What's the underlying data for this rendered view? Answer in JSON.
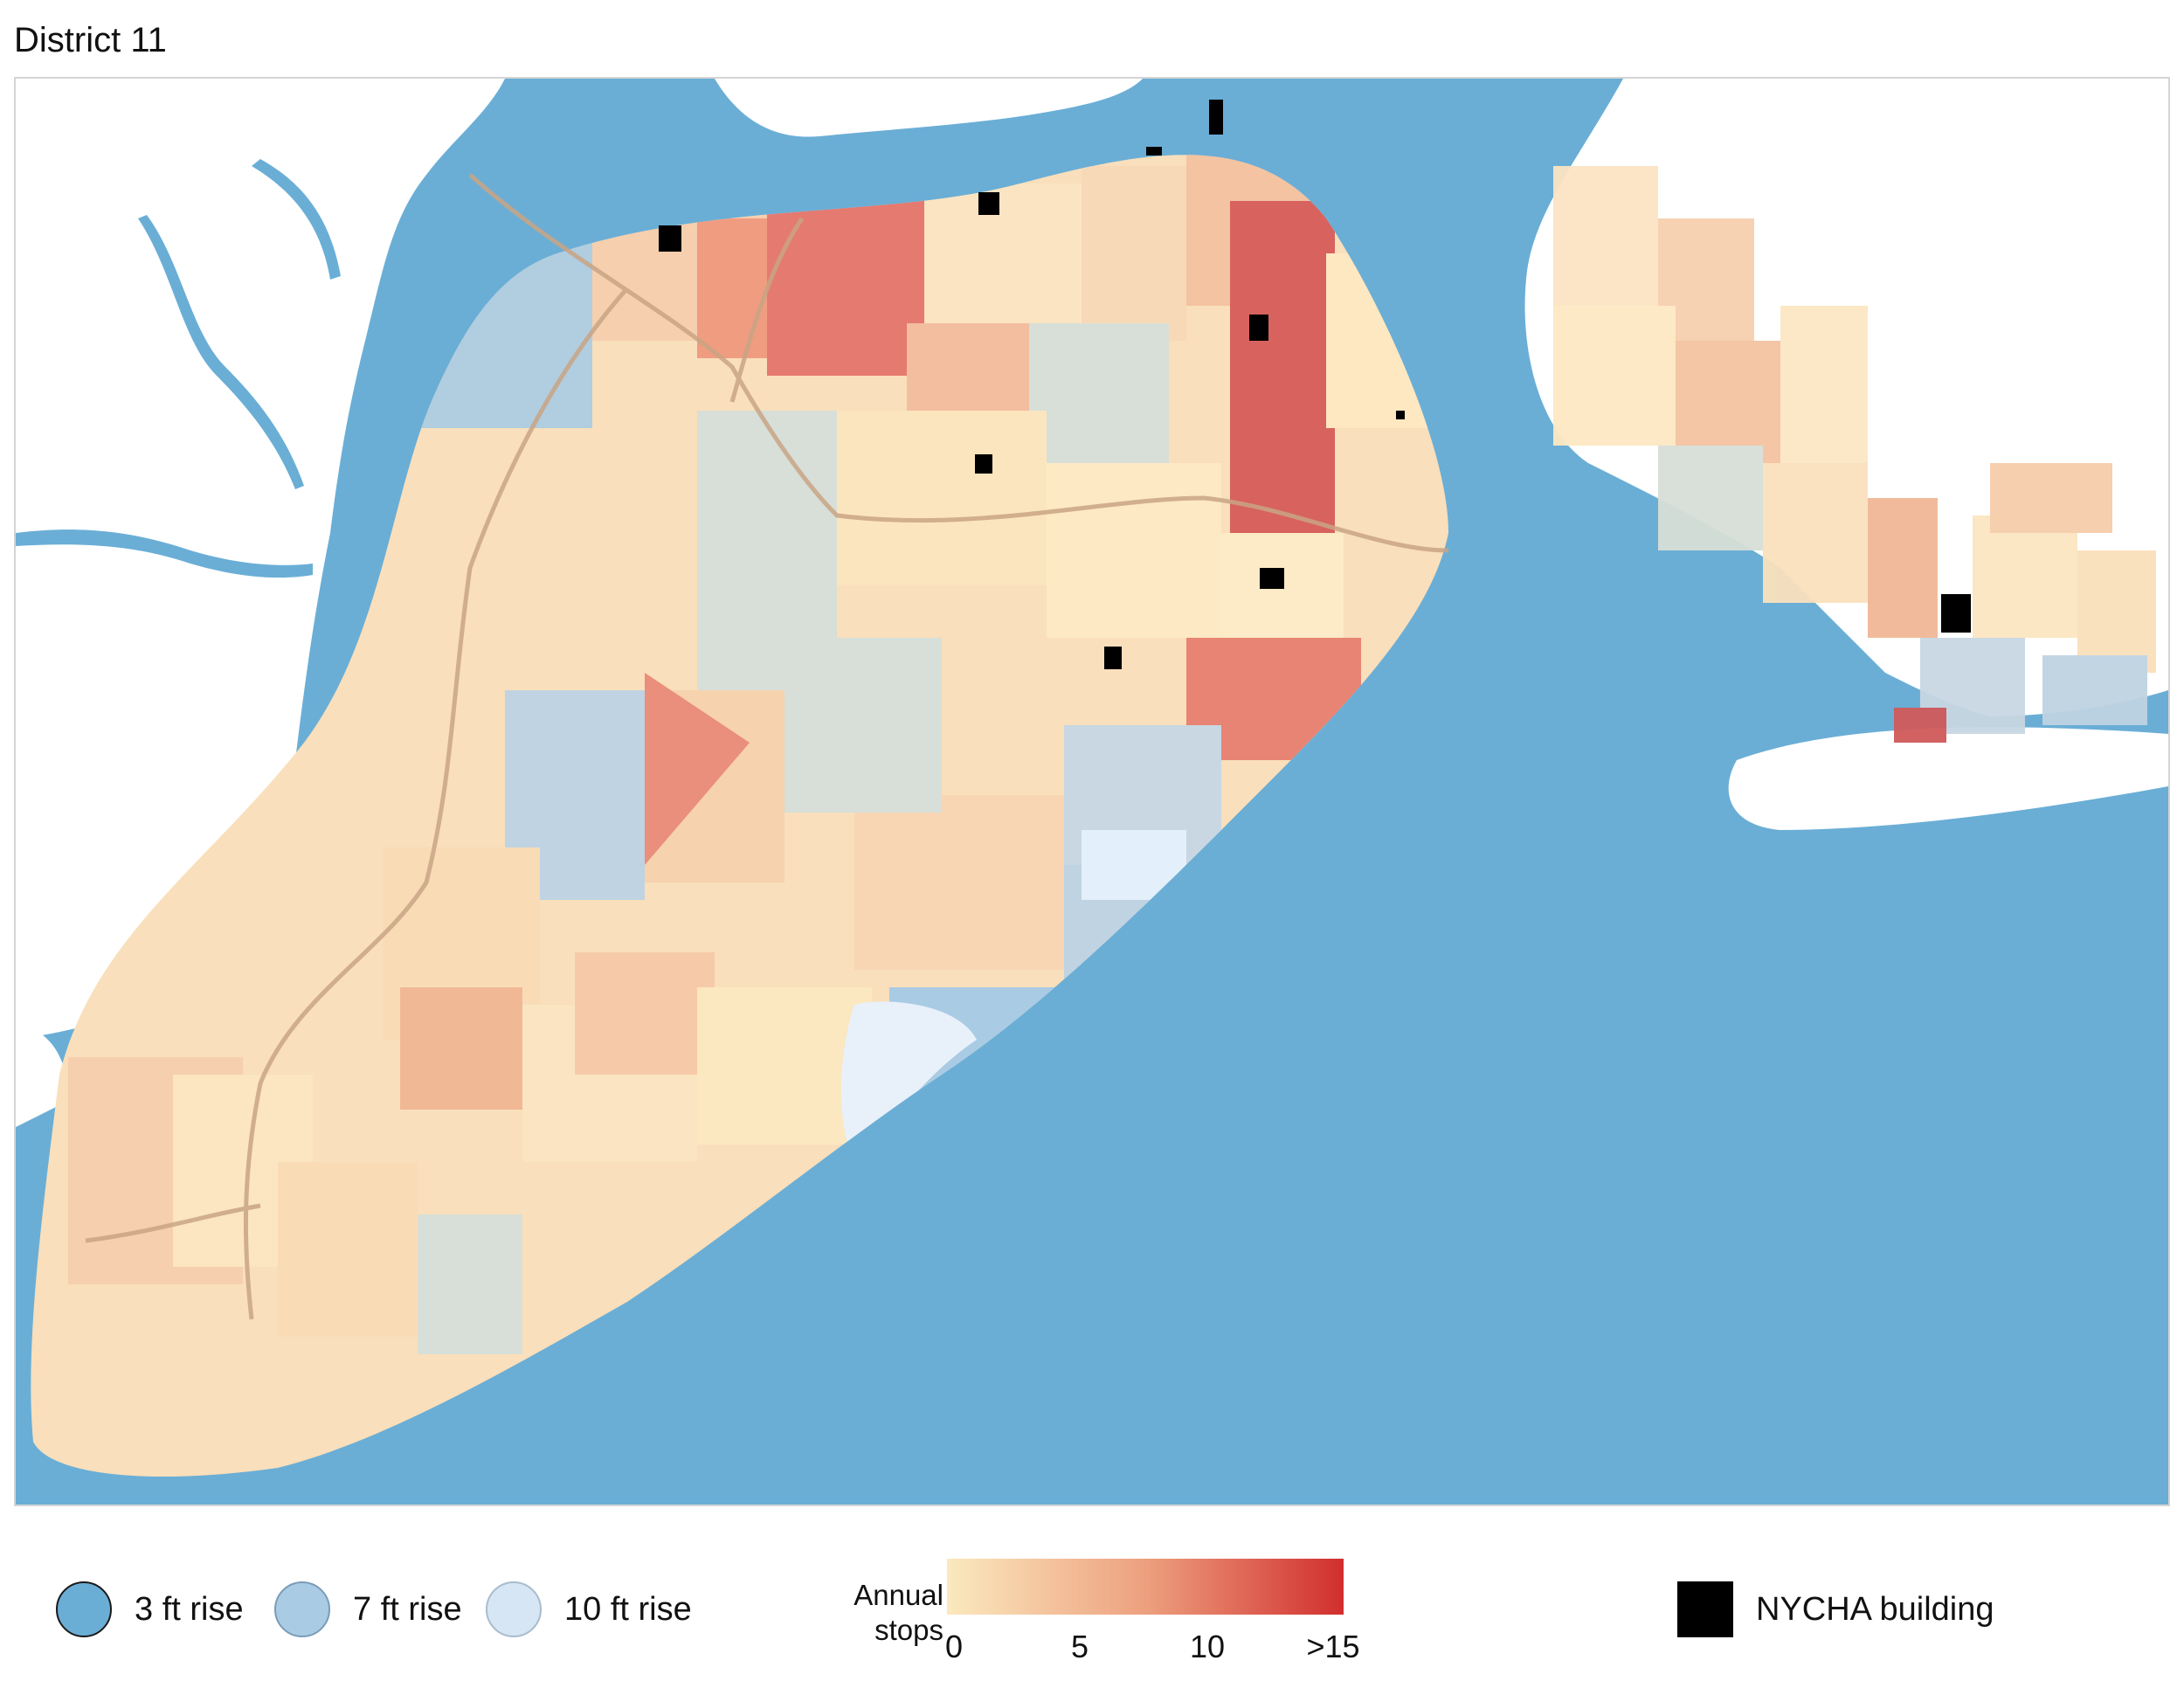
{
  "title": "District 11",
  "legend": {
    "flood": [
      {
        "label": "3 ft rise",
        "fill": "#6aaed6",
        "stroke": "#1a1a1a"
      },
      {
        "label": "7 ft rise",
        "fill": "#a9cbe4",
        "stroke": "#7a9cb8"
      },
      {
        "label": "10 ft rise",
        "fill": "#d6e6f4",
        "stroke": "#a8bccd"
      }
    ],
    "stops_scale": {
      "title": "Annual stops",
      "tick_labels": [
        "0",
        "5",
        "10",
        ">15"
      ],
      "tick_values": [
        0,
        5,
        10,
        15
      ],
      "color_low": "#fbe9be",
      "color_mid": "#eda07f",
      "color_high": "#d12e2e"
    },
    "nycha": {
      "label": "NYCHA building",
      "color": "#000000"
    }
  },
  "colors": {
    "water": "#6aaed6",
    "land": "#ffffff",
    "boundary": "#9a9a9a",
    "road": "#c9a585",
    "surge_7ft": "#a9cbe4",
    "surge_10ft": "#d6e6f4"
  }
}
